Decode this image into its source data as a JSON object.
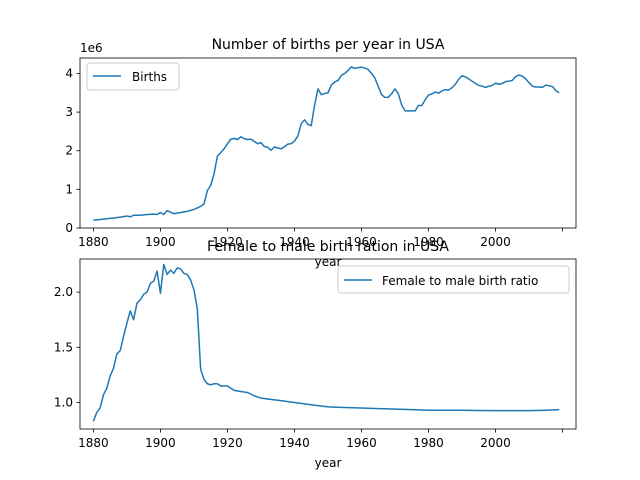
{
  "chart_data": [
    {
      "type": "line",
      "title": "Number of births per year in USA",
      "xlabel": "year",
      "ylabel": "",
      "offset_label": "1e6",
      "xlim": [
        1876,
        2024
      ],
      "ylim": [
        0,
        4.4
      ],
      "xticks": [
        1880,
        1900,
        1920,
        1940,
        1960,
        1980,
        2000,
        2020
      ],
      "xtick_labels": [
        "1880",
        "1900",
        "1920",
        "1940",
        "1960",
        "1980",
        "2000",
        ""
      ],
      "yticks": [
        0,
        1,
        2,
        3,
        4
      ],
      "ytick_labels": [
        "0",
        "1",
        "2",
        "3",
        "4"
      ],
      "grid": false,
      "legend_position": "top-left",
      "series": [
        {
          "name": "Births",
          "color": "#1f77b4",
          "x": [
            1880,
            1882,
            1884,
            1886,
            1888,
            1890,
            1891,
            1892,
            1894,
            1896,
            1898,
            1899,
            1900,
            1901,
            1902,
            1904,
            1906,
            1908,
            1910,
            1911,
            1912,
            1913,
            1914,
            1915,
            1916,
            1917,
            1918,
            1919,
            1920,
            1921,
            1922,
            1923,
            1924,
            1925,
            1926,
            1927,
            1928,
            1929,
            1930,
            1931,
            1932,
            1933,
            1934,
            1935,
            1936,
            1937,
            1938,
            1939,
            1940,
            1941,
            1942,
            1943,
            1944,
            1945,
            1946,
            1947,
            1948,
            1949,
            1950,
            1951,
            1952,
            1953,
            1954,
            1955,
            1956,
            1957,
            1958,
            1959,
            1960,
            1961,
            1962,
            1963,
            1964,
            1965,
            1966,
            1967,
            1968,
            1969,
            1970,
            1971,
            1972,
            1973,
            1974,
            1975,
            1976,
            1977,
            1978,
            1979,
            1980,
            1981,
            1982,
            1983,
            1984,
            1985,
            1986,
            1987,
            1988,
            1989,
            1990,
            1991,
            1992,
            1993,
            1994,
            1995,
            1996,
            1997,
            1998,
            1999,
            2000,
            2001,
            2002,
            2003,
            2004,
            2005,
            2006,
            2007,
            2008,
            2009,
            2010,
            2011,
            2012,
            2013,
            2014,
            2015,
            2016,
            2017,
            2018,
            2019
          ],
          "values": [
            0.2,
            0.22,
            0.24,
            0.26,
            0.28,
            0.31,
            0.29,
            0.33,
            0.33,
            0.35,
            0.36,
            0.35,
            0.4,
            0.35,
            0.45,
            0.37,
            0.4,
            0.43,
            0.48,
            0.52,
            0.56,
            0.62,
            0.97,
            1.1,
            1.4,
            1.86,
            1.95,
            2.05,
            2.18,
            2.3,
            2.32,
            2.29,
            2.36,
            2.31,
            2.29,
            2.3,
            2.24,
            2.18,
            2.21,
            2.11,
            2.09,
            2.01,
            2.1,
            2.07,
            2.05,
            2.1,
            2.17,
            2.18,
            2.25,
            2.38,
            2.7,
            2.8,
            2.68,
            2.65,
            3.18,
            3.6,
            3.45,
            3.48,
            3.5,
            3.7,
            3.78,
            3.82,
            3.95,
            4.0,
            4.08,
            4.17,
            4.13,
            4.15,
            4.16,
            4.14,
            4.1,
            4.0,
            3.88,
            3.66,
            3.45,
            3.38,
            3.38,
            3.48,
            3.6,
            3.47,
            3.18,
            3.03,
            3.03,
            3.03,
            3.03,
            3.17,
            3.17,
            3.32,
            3.44,
            3.47,
            3.52,
            3.49,
            3.55,
            3.58,
            3.57,
            3.63,
            3.72,
            3.85,
            3.94,
            3.91,
            3.86,
            3.8,
            3.74,
            3.69,
            3.67,
            3.64,
            3.67,
            3.69,
            3.75,
            3.72,
            3.74,
            3.79,
            3.8,
            3.82,
            3.92,
            3.96,
            3.93,
            3.86,
            3.76,
            3.67,
            3.65,
            3.65,
            3.64,
            3.7,
            3.68,
            3.66,
            3.55,
            3.5
          ]
        }
      ]
    },
    {
      "type": "line",
      "title": "Female to male birth ration in USA",
      "xlabel": "year",
      "ylabel": "",
      "xlim": [
        1876,
        2024
      ],
      "ylim": [
        0.76,
        2.3
      ],
      "xticks": [
        1880,
        1900,
        1920,
        1940,
        1960,
        1980,
        2000,
        2020
      ],
      "xtick_labels": [
        "1880",
        "1900",
        "1920",
        "1940",
        "1960",
        "1980",
        "2000",
        ""
      ],
      "yticks": [
        1.0,
        1.5,
        2.0
      ],
      "ytick_labels": [
        "1.0",
        "1.5",
        "2.0"
      ],
      "grid": false,
      "legend_position": "top-right",
      "series": [
        {
          "name": "Female to male birth ratio",
          "color": "#1f77b4",
          "x": [
            1880,
            1881,
            1882,
            1883,
            1884,
            1885,
            1886,
            1887,
            1888,
            1889,
            1890,
            1891,
            1892,
            1893,
            1894,
            1895,
            1896,
            1897,
            1898,
            1899,
            1900,
            1901,
            1902,
            1903,
            1904,
            1905,
            1906,
            1907,
            1908,
            1909,
            1910,
            1911,
            1912,
            1913,
            1914,
            1915,
            1916,
            1917,
            1918,
            1920,
            1922,
            1924,
            1926,
            1928,
            1930,
            1935,
            1940,
            1945,
            1950,
            1955,
            1960,
            1965,
            1970,
            1975,
            1980,
            1985,
            1990,
            1995,
            2000,
            2005,
            2010,
            2015,
            2019
          ],
          "values": [
            0.83,
            0.91,
            0.95,
            1.07,
            1.13,
            1.24,
            1.31,
            1.44,
            1.47,
            1.6,
            1.72,
            1.83,
            1.75,
            1.9,
            1.93,
            1.98,
            2.0,
            2.08,
            2.1,
            2.19,
            1.99,
            2.25,
            2.16,
            2.2,
            2.17,
            2.22,
            2.21,
            2.17,
            2.16,
            2.11,
            2.02,
            1.85,
            1.3,
            1.21,
            1.17,
            1.16,
            1.17,
            1.17,
            1.15,
            1.15,
            1.11,
            1.1,
            1.09,
            1.06,
            1.04,
            1.02,
            1.0,
            0.98,
            0.96,
            0.955,
            0.95,
            0.945,
            0.94,
            0.935,
            0.93,
            0.93,
            0.93,
            0.928,
            0.926,
            0.926,
            0.926,
            0.93,
            0.935
          ]
        }
      ]
    }
  ]
}
